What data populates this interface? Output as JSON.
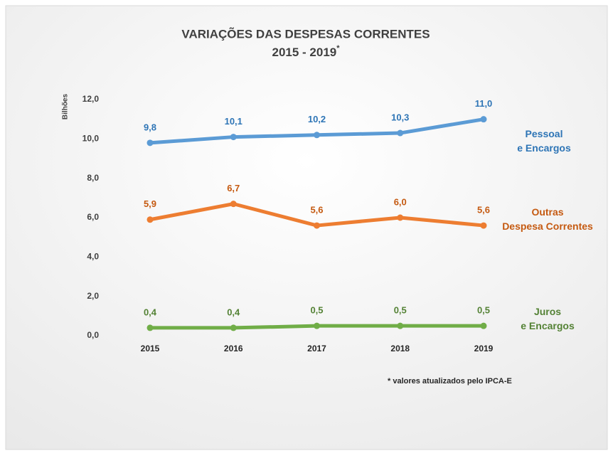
{
  "chart_data": {
    "type": "line",
    "title": "VARIAÇÕES DAS DESPESAS CORRENTES",
    "subtitle": "2015 - 2019",
    "subtitle_superscript": "*",
    "y_axis_label": "Bilhões",
    "footnote": "* valores atualizados pelo IPCA-E",
    "categories": [
      "2015",
      "2016",
      "2017",
      "2018",
      "2019"
    ],
    "ylim": [
      0,
      12
    ],
    "yticks": [
      {
        "value": 0,
        "label": "0,0"
      },
      {
        "value": 2,
        "label": "2,0"
      },
      {
        "value": 4,
        "label": "4,0"
      },
      {
        "value": 6,
        "label": "6,0"
      },
      {
        "value": 8,
        "label": "8,0"
      },
      {
        "value": 10,
        "label": "10,0"
      },
      {
        "value": 12,
        "label": "12,0"
      }
    ],
    "grid": false,
    "series": [
      {
        "name": "Pessoal\ne Encargos",
        "color": "#5b9bd5",
        "label_color": "#2e75b6",
        "values": [
          9.8,
          10.1,
          10.2,
          10.3,
          11.0
        ],
        "value_labels": [
          "9,8",
          "10,1",
          "10,2",
          "10,3",
          "11,0"
        ]
      },
      {
        "name": "Outras\nDespesa Correntes",
        "color": "#ed7d31",
        "label_color": "#c55a11",
        "values": [
          5.9,
          6.7,
          5.6,
          6.0,
          5.6
        ],
        "value_labels": [
          "5,9",
          "6,7",
          "5,6",
          "6,0",
          "5,6"
        ]
      },
      {
        "name": "Juros\ne Encargos",
        "color": "#70ad47",
        "label_color": "#548235",
        "values": [
          0.4,
          0.4,
          0.5,
          0.5,
          0.5
        ],
        "value_labels": [
          "0,4",
          "0,4",
          "0,5",
          "0,5",
          "0,5"
        ]
      }
    ]
  }
}
